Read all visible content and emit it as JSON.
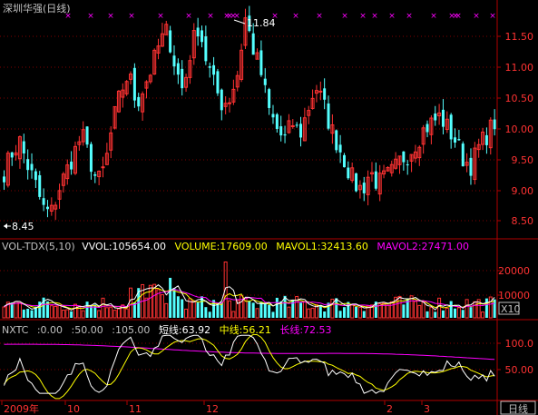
{
  "stock_title": "深圳华强(日线)",
  "price_panel": {
    "high_marker": "11.84",
    "low_marker": "8.45",
    "axis_ticks": [
      "11.50",
      "11.00",
      "10.50",
      "10.00",
      "9.50",
      "9.00",
      "8.50"
    ]
  },
  "volume_panel": {
    "legend": {
      "name": "VOL-TDX(5,10)",
      "vvol": "VVOL:105654.00",
      "volume": "VOLUME:17609.00",
      "mavol1": "MAVOL1:32413.60",
      "mavol2": "MAVOL2:27471.00"
    },
    "axis_ticks": [
      "20000",
      "10000"
    ],
    "unit_badge": "X10"
  },
  "nxtc_panel": {
    "legend": {
      "name": "NXTC",
      "p1": ":0.00",
      "p2": ":50.00",
      "p3": ":105.00",
      "short": "短线:63.92",
      "mid": "中线:56.21",
      "long": "长线:72.53"
    },
    "axis_ticks": [
      "100.0",
      "50.00"
    ]
  },
  "time_axis": {
    "labels": [
      "2009年",
      "10",
      "11",
      "12",
      "2",
      "3"
    ],
    "period_button": "日线"
  },
  "colors": {
    "up": "#ff3232",
    "down": "#54ffff",
    "axis": "#b00000",
    "grid": "#800000",
    "text": "#c0c0c0",
    "vvol": "#ffffff",
    "volume": "#ffff00",
    "mavol2": "#ff00ff",
    "signal": "#ff00ff"
  }
}
